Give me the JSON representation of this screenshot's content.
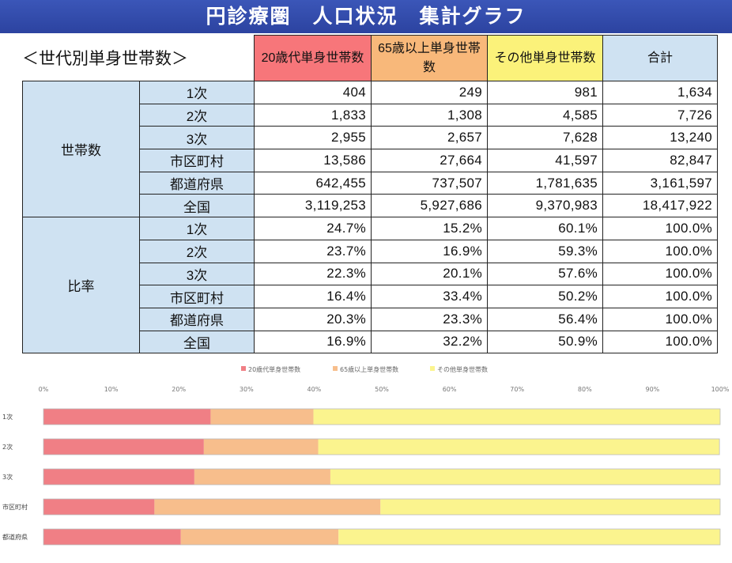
{
  "banner": {
    "title": "円診療圏　人口状況　集計グラフ"
  },
  "table": {
    "subtitle": "＜世代別単身世帯数＞",
    "headers": [
      "20歳代単身世帯数",
      "65歳以上単身世帯数",
      "その他単身世帯数",
      "合計"
    ],
    "groups": [
      {
        "label": "世帯数",
        "rows": [
          {
            "label": "1次",
            "values": [
              "404",
              "249",
              "981",
              "1,634"
            ]
          },
          {
            "label": "2次",
            "values": [
              "1,833",
              "1,308",
              "4,585",
              "7,726"
            ]
          },
          {
            "label": "3次",
            "values": [
              "2,955",
              "2,657",
              "7,628",
              "13,240"
            ]
          },
          {
            "label": "市区町村",
            "values": [
              "13,586",
              "27,664",
              "41,597",
              "82,847"
            ]
          },
          {
            "label": "都道府県",
            "values": [
              "642,455",
              "737,507",
              "1,781,635",
              "3,161,597"
            ]
          },
          {
            "label": "全国",
            "values": [
              "3,119,253",
              "5,927,686",
              "9,370,983",
              "18,417,922"
            ]
          }
        ]
      },
      {
        "label": "比率",
        "rows": [
          {
            "label": "1次",
            "values": [
              "24.7%",
              "15.2%",
              "60.1%",
              "100.0%"
            ]
          },
          {
            "label": "2次",
            "values": [
              "23.7%",
              "16.9%",
              "59.3%",
              "100.0%"
            ]
          },
          {
            "label": "3次",
            "values": [
              "22.3%",
              "20.1%",
              "57.6%",
              "100.0%"
            ]
          },
          {
            "label": "市区町村",
            "values": [
              "16.4%",
              "33.4%",
              "50.2%",
              "100.0%"
            ]
          },
          {
            "label": "都道府県",
            "values": [
              "20.3%",
              "23.3%",
              "56.4%",
              "100.0%"
            ]
          },
          {
            "label": "全国",
            "values": [
              "16.9%",
              "32.2%",
              "50.9%",
              "100.0%"
            ]
          }
        ]
      }
    ]
  },
  "chart_data": {
    "type": "bar",
    "orientation": "horizontal",
    "stacked": true,
    "percent": true,
    "categories": [
      "1次",
      "2次",
      "3次",
      "市区町村",
      "都道府県"
    ],
    "series": [
      {
        "name": "20歳代単身世帯数",
        "color": "#f07f85",
        "values": [
          24.7,
          23.7,
          22.3,
          16.4,
          20.3
        ]
      },
      {
        "name": "65歳以上単身世帯数",
        "color": "#f7be8c",
        "values": [
          15.2,
          16.9,
          20.1,
          33.4,
          23.3
        ]
      },
      {
        "name": "その他単身世帯数",
        "color": "#fbf48e",
        "values": [
          60.1,
          59.3,
          57.6,
          50.2,
          56.4
        ]
      }
    ],
    "xlim": [
      0,
      100
    ],
    "xticks": [
      "0%",
      "10%",
      "20%",
      "30%",
      "40%",
      "50%",
      "60%",
      "70%",
      "80%",
      "90%",
      "100%"
    ],
    "legend": "top",
    "grid": false
  }
}
